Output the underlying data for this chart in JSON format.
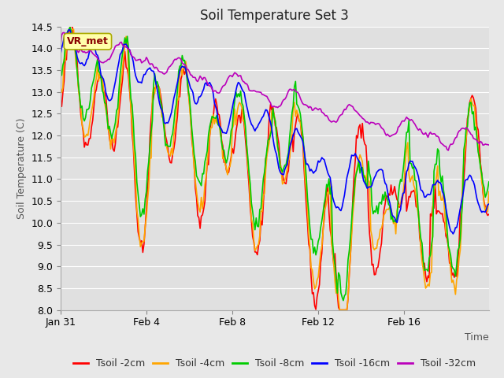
{
  "title": "Soil Temperature Set 3",
  "xlabel": "Time",
  "ylabel": "Soil Temperature (C)",
  "ylim": [
    8.0,
    14.5
  ],
  "yticks": [
    8.0,
    8.5,
    9.0,
    9.5,
    10.0,
    10.5,
    11.0,
    11.5,
    12.0,
    12.5,
    13.0,
    13.5,
    14.0,
    14.5
  ],
  "line_colors": {
    "Tsoil -2cm": "#ff0000",
    "Tsoil -4cm": "#ffa500",
    "Tsoil -8cm": "#00cc00",
    "Tsoil -16cm": "#0000ff",
    "Tsoil -32cm": "#bb00bb"
  },
  "legend_labels": [
    "Tsoil -2cm",
    "Tsoil -4cm",
    "Tsoil -8cm",
    "Tsoil -16cm",
    "Tsoil -32cm"
  ],
  "annotation_text": "VR_met",
  "annotation_facecolor": "#ffffaa",
  "annotation_edgecolor": "#aaaa00",
  "annotation_textcolor": "#880000",
  "fig_facecolor": "#e8e8e8",
  "plot_facecolor": "#e0e0e0",
  "grid_color": "#ffffff",
  "title_fontsize": 12,
  "axis_label_fontsize": 9,
  "tick_fontsize": 9,
  "legend_fontsize": 9,
  "line_width": 1.2,
  "xtick_labels": [
    "Jan 31",
    "Feb 4",
    "Feb 8",
    "Feb 12",
    "Feb 16"
  ],
  "xtick_positions": [
    0,
    72,
    144,
    216,
    288
  ],
  "n_points": 360
}
